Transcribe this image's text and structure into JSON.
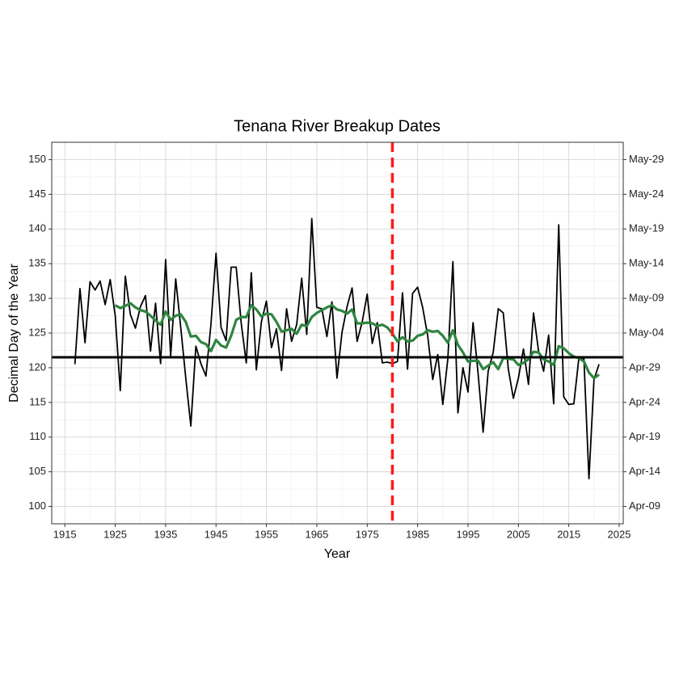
{
  "chart_data": {
    "type": "line",
    "title": "Tenana River Breakup Dates",
    "x_label": "Year",
    "y_label": "Decimal Day of the Year",
    "x": [
      1917,
      1918,
      1919,
      1920,
      1921,
      1922,
      1923,
      1924,
      1925,
      1926,
      1927,
      1928,
      1929,
      1930,
      1931,
      1932,
      1933,
      1934,
      1935,
      1936,
      1937,
      1938,
      1939,
      1940,
      1941,
      1942,
      1943,
      1944,
      1945,
      1946,
      1947,
      1948,
      1949,
      1950,
      1951,
      1952,
      1953,
      1954,
      1955,
      1956,
      1957,
      1958,
      1959,
      1960,
      1961,
      1962,
      1963,
      1964,
      1965,
      1966,
      1967,
      1968,
      1969,
      1970,
      1971,
      1972,
      1973,
      1974,
      1975,
      1976,
      1977,
      1978,
      1979,
      1980,
      1981,
      1982,
      1983,
      1984,
      1985,
      1986,
      1987,
      1988,
      1989,
      1990,
      1991,
      1992,
      1993,
      1994,
      1995,
      1996,
      1997,
      1998,
      1999,
      2000,
      2001,
      2002,
      2003,
      2004,
      2005,
      2006,
      2007,
      2008,
      2009,
      2010,
      2011,
      2012,
      2013,
      2014,
      2015,
      2016,
      2017,
      2018,
      2019,
      2020,
      2021
    ],
    "series": [
      {
        "color": "#000000",
        "width": 1.8,
        "values": [
          120.5,
          131.4,
          123.6,
          132.4,
          131.2,
          132.5,
          129.1,
          132.7,
          127.5,
          116.7,
          133.2,
          127.7,
          125.7,
          128.8,
          130.4,
          122.4,
          129.3,
          120.6,
          135.6,
          121.7,
          132.8,
          125.8,
          118.5,
          111.6,
          123.1,
          120.6,
          118.8,
          126.3,
          136.5,
          125.8,
          123.9,
          134.5,
          134.5,
          126.4,
          120.7,
          133.7,
          119.7,
          126.6,
          129.6,
          122.9,
          125.6,
          119.6,
          128.5,
          123.8,
          126.2,
          132.9,
          124.8,
          141.5,
          128.7,
          128.5,
          124.5,
          129.5,
          118.5,
          125.1,
          128.8,
          131.5,
          123.8,
          126.6,
          130.6,
          123.5,
          126.5,
          120.7,
          120.8,
          120.6,
          120.9,
          130.8,
          119.8,
          130.7,
          131.6,
          128.7,
          124.6,
          118.3,
          121.9,
          114.7,
          121.3,
          135.3,
          113.5,
          120.0,
          116.5,
          126.5,
          119.2,
          110.7,
          119.5,
          122.2,
          128.5,
          127.9,
          119.8,
          115.6,
          118.5,
          122.7,
          117.6,
          127.9,
          122.4,
          119.5,
          124.7,
          114.8,
          140.6,
          115.8,
          114.7,
          114.8,
          121.4,
          121.3,
          104.0,
          118.3,
          120.5
        ]
      },
      {
        "color": "#2e8540",
        "width": 3.2,
        "values": [
          null,
          null,
          null,
          null,
          null,
          null,
          null,
          null,
          129.0,
          128.6,
          128.9,
          129.3,
          128.7,
          128.3,
          128.1,
          127.5,
          126.8,
          126.2,
          128.1,
          126.9,
          127.5,
          127.7,
          126.6,
          124.5,
          124.6,
          123.7,
          123.4,
          122.4,
          124.0,
          123.2,
          122.9,
          124.6,
          126.9,
          127.3,
          127.3,
          129.0,
          128.4,
          127.4,
          127.8,
          127.7,
          126.6,
          125.2,
          125.4,
          125.6,
          124.9,
          126.2,
          126.0,
          127.3,
          127.9,
          128.3,
          128.7,
          129.0,
          128.4,
          128.2,
          127.8,
          128.4,
          126.4,
          126.4,
          126.5,
          126.4,
          126.0,
          126.2,
          125.8,
          124.9,
          123.8,
          124.4,
          123.8,
          123.9,
          124.6,
          124.8,
          125.4,
          125.2,
          125.3,
          124.6,
          123.6,
          125.4,
          123.3,
          122.2,
          120.9,
          121.0,
          121.0,
          119.8,
          120.3,
          120.8,
          119.8,
          121.4,
          121.3,
          121.2,
          120.4,
          120.7,
          121.2,
          122.3,
          122.2,
          121.2,
          120.9,
          120.4,
          123.1,
          122.8,
          122.1,
          121.6,
          121.4,
          120.9,
          119.3,
          118.5,
          119.0
        ]
      }
    ],
    "hline": {
      "value": 121.5,
      "color": "#000000"
    },
    "vline": {
      "value": 1980,
      "color": "#ff1a1a"
    },
    "xlim": [
      1912.4,
      2025.8
    ],
    "xticks": [
      1915,
      1925,
      1935,
      1945,
      1955,
      1965,
      1975,
      1985,
      1995,
      2005,
      2015,
      2025
    ],
    "ylim": [
      97.5,
      152.5
    ],
    "yticks": [
      100,
      105,
      110,
      115,
      120,
      125,
      130,
      135,
      140,
      145,
      150
    ],
    "y2lim": [
      97.5,
      152.5
    ],
    "y2ticks": [
      {
        "value": 100,
        "label": "Apr-09"
      },
      {
        "value": 105,
        "label": "Apr-14"
      },
      {
        "value": 110,
        "label": "Apr-19"
      },
      {
        "value": 115,
        "label": "Apr-24"
      },
      {
        "value": 120,
        "label": "Apr-29"
      },
      {
        "value": 125,
        "label": "May-04"
      },
      {
        "value": 130,
        "label": "May-09"
      },
      {
        "value": 135,
        "label": "May-14"
      },
      {
        "value": 140,
        "label": "May-19"
      },
      {
        "value": 145,
        "label": "May-24"
      },
      {
        "value": 150,
        "label": "May-29"
      }
    ],
    "grid": true,
    "minor_grid": true
  }
}
